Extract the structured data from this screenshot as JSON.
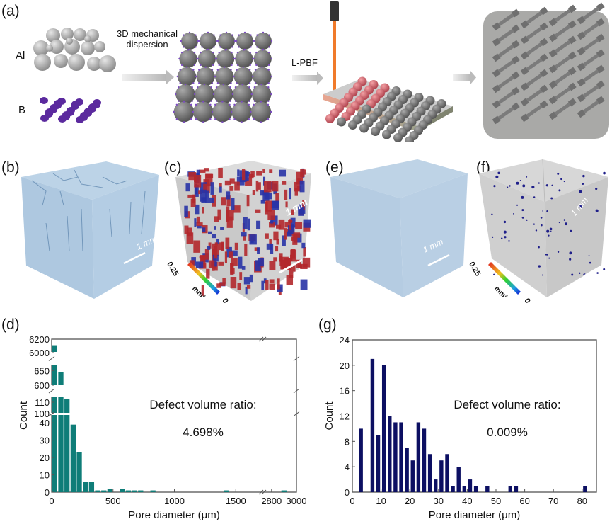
{
  "panels": {
    "a": {
      "label": "(a)",
      "al_label": "Al",
      "b_label": "B",
      "step1": "3D mechanical",
      "step1b": "dispersion",
      "step2": "L-PBF"
    },
    "b": {
      "label": "(b)",
      "scale": "1 mm"
    },
    "c": {
      "label": "(c)",
      "scale": "1 mm",
      "cb_max": "0.25",
      "cb_min": "0",
      "cb_unit": "mm³"
    },
    "e": {
      "label": "(e)",
      "scale": "1 mm"
    },
    "f": {
      "label": "(f)",
      "scale": "1 mm",
      "cb_max": "0.25",
      "cb_min": "0",
      "cb_unit": "mm³"
    },
    "d": {
      "label": "(d)"
    },
    "g": {
      "label": "(g)"
    }
  },
  "colors": {
    "teal": "#0f7d78",
    "navy": "#0c0f62",
    "axis": "#555555"
  },
  "chart_data": [
    {
      "type": "bar",
      "panel": "d",
      "xlabel": "Pore diameter (μm)",
      "ylabel": "Count",
      "annotation": "Defect volume ratio:",
      "annotation_value": "4.698%",
      "xticks": [
        "0",
        "500",
        "1000",
        "1500",
        "2800",
        "3000"
      ],
      "yticks": [
        "0",
        "10",
        "20",
        "30",
        "40",
        "100",
        "110",
        "600",
        "650",
        "6000",
        "6200"
      ],
      "x_break": [
        1700,
        2750
      ],
      "y_breaks": [
        [
          45,
          100
        ],
        [
          115,
          600
        ],
        [
          670,
          6000
        ]
      ],
      "xlim": [
        0,
        3000
      ],
      "x": [
        25,
        75,
        125,
        175,
        225,
        275,
        325,
        375,
        425,
        475,
        575,
        625,
        675,
        725,
        825,
        1425,
        2900
      ],
      "values": [
        6110,
        645,
        113,
        39,
        23,
        6,
        6,
        1,
        1,
        2,
        2,
        1,
        1,
        1,
        1,
        1,
        1
      ]
    },
    {
      "type": "bar",
      "panel": "g",
      "xlabel": "Pore diameter (μm)",
      "ylabel": "Count",
      "annotation": "Defect volume ratio:",
      "annotation_value": "0.009%",
      "xticks": [
        "0",
        "10",
        "20",
        "30",
        "40",
        "50",
        "60",
        "70",
        "80"
      ],
      "yticks": [
        "0",
        "4",
        "8",
        "12",
        "16",
        "20",
        "24"
      ],
      "xlim": [
        0,
        85
      ],
      "ylim": [
        0,
        24
      ],
      "x": [
        3,
        7,
        9,
        11,
        13,
        15,
        17,
        19,
        21,
        23,
        25,
        27,
        29,
        31,
        33,
        35,
        37,
        39,
        41,
        43,
        47,
        55,
        57,
        81
      ],
      "values": [
        10,
        21,
        9,
        20,
        12,
        11,
        11,
        7,
        5,
        11,
        10,
        6,
        2,
        5,
        6,
        1,
        4,
        1,
        2,
        1,
        1,
        1,
        1,
        1
      ]
    }
  ]
}
